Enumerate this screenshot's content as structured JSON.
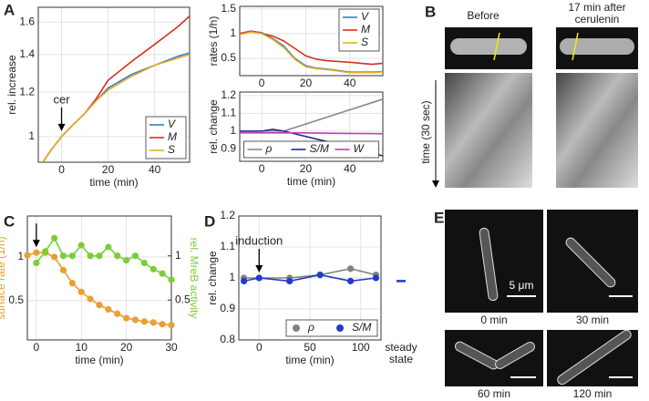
{
  "chart_data": [
    {
      "type": "line",
      "xlabel": "time (min)",
      "ylabel": "rel. increase",
      "ylog": true,
      "xlim": [
        -10,
        55
      ],
      "ylim": [
        0.9,
        1.7
      ],
      "xticks": [
        0,
        20,
        40
      ],
      "yticks": [
        1,
        1.2,
        1.4,
        1.6
      ],
      "grid": true,
      "legend": "lower right",
      "annotation": {
        "text": "cer",
        "x": 0
      },
      "x": [
        -8,
        -5,
        0,
        5,
        10,
        15,
        20,
        30,
        40,
        50,
        55
      ],
      "series": [
        {
          "name": "V",
          "color": "#3a7fc1",
          "values": [
            0.9,
            0.94,
            1.0,
            1.05,
            1.1,
            1.16,
            1.22,
            1.29,
            1.34,
            1.39,
            1.41
          ]
        },
        {
          "name": "M",
          "color": "#d7301f",
          "values": [
            0.9,
            0.94,
            1.0,
            1.05,
            1.1,
            1.17,
            1.26,
            1.36,
            1.46,
            1.57,
            1.64
          ]
        },
        {
          "name": "S",
          "color": "#e8b020",
          "values": [
            0.9,
            0.94,
            1.0,
            1.05,
            1.1,
            1.16,
            1.21,
            1.28,
            1.34,
            1.38,
            1.4
          ]
        }
      ]
    },
    {
      "type": "line",
      "ylabel": "rates (1/h)",
      "xlim": [
        -10,
        55
      ],
      "ylim": [
        0.15,
        1.55
      ],
      "xticks": [
        0,
        20,
        40
      ],
      "yticks": [
        0.5,
        1,
        1.5
      ],
      "grid": true,
      "legend": "upper right",
      "x": [
        -10,
        -5,
        0,
        5,
        10,
        15,
        20,
        25,
        30,
        40,
        50,
        55
      ],
      "series": [
        {
          "name": "V",
          "color": "#3a7fc1",
          "values": [
            1.0,
            1.05,
            1.02,
            0.9,
            0.75,
            0.5,
            0.35,
            0.3,
            0.28,
            0.22,
            0.22,
            0.23
          ]
        },
        {
          "name": "M",
          "color": "#d7301f",
          "values": [
            1.0,
            1.05,
            1.0,
            0.95,
            0.85,
            0.7,
            0.55,
            0.48,
            0.45,
            0.42,
            0.38,
            0.4
          ]
        },
        {
          "name": "S",
          "color": "#e8b020",
          "values": [
            0.98,
            1.03,
            1.0,
            0.88,
            0.72,
            0.48,
            0.33,
            0.29,
            0.27,
            0.21,
            0.21,
            0.22
          ]
        }
      ]
    },
    {
      "type": "line",
      "xlabel": "time (min)",
      "ylabel": "rel. change",
      "xlim": [
        -10,
        55
      ],
      "ylim": [
        0.83,
        1.22
      ],
      "xticks": [
        0,
        20,
        40
      ],
      "yticks": [
        0.9,
        1,
        1.1,
        1.2
      ],
      "grid": true,
      "legend": "lower center",
      "legend_columns": 3,
      "x": [
        -10,
        0,
        5,
        10,
        20,
        30,
        40,
        50,
        55
      ],
      "series": [
        {
          "name": "ρ",
          "color": "#888888",
          "values": [
            1.0,
            1.0,
            1.0,
            1.0,
            1.04,
            1.08,
            1.12,
            1.16,
            1.18
          ]
        },
        {
          "name": "S/M",
          "color": "#1f2a8c",
          "values": [
            1.0,
            1.0,
            1.01,
            1.0,
            0.97,
            0.94,
            0.91,
            0.88,
            0.86
          ]
        },
        {
          "name": "W",
          "color": "#c03cc0",
          "values": [
            0.99,
            0.99,
            0.99,
            0.99,
            0.99,
            0.988,
            0.987,
            0.986,
            0.985
          ]
        }
      ]
    },
    {
      "type": "line",
      "xlabel": "time (min)",
      "ylabel": "surface rate (1/h)",
      "y2label": "rel. MreB activity",
      "xlim": [
        -2,
        30
      ],
      "ylim": [
        0.05,
        1.47
      ],
      "y2lim": [
        0.05,
        1.45
      ],
      "xticks": [
        0,
        10,
        20,
        30
      ],
      "yticks": [
        0.5,
        1
      ],
      "y2ticks": [
        0.5,
        1
      ],
      "grid": true,
      "markers": true,
      "annotation": {
        "x": 0
      },
      "x": [
        -2,
        0,
        2,
        4,
        6,
        8,
        10,
        12,
        14,
        16,
        18,
        20,
        22,
        24,
        26,
        28,
        30
      ],
      "series": [
        {
          "name": "surface rate",
          "color": "#e8a030",
          "values": [
            1.02,
            1.05,
            1.05,
            1.0,
            0.85,
            0.7,
            0.6,
            0.52,
            0.45,
            0.4,
            0.35,
            0.3,
            0.28,
            0.26,
            0.25,
            0.23,
            0.22
          ]
        },
        {
          "name": "rel. MreB activity",
          "color": "#7ccd3a",
          "axis": "y2",
          "values": [
            null,
            0.92,
            1.05,
            1.2,
            1.0,
            1.0,
            1.12,
            1.0,
            1.0,
            1.1,
            1.0,
            0.95,
            1.0,
            0.92,
            0.85,
            0.8,
            0.73
          ]
        }
      ]
    },
    {
      "type": "line",
      "xlabel": "time (min)",
      "ylabel": "rel. change",
      "xlim": [
        -20,
        120
      ],
      "ylim": [
        0.8,
        1.2
      ],
      "xticks": [
        0,
        50,
        100
      ],
      "yticks": [
        0.8,
        0.9,
        1,
        1.1,
        1.2
      ],
      "grid": true,
      "markers": true,
      "legend": "lower right",
      "legend_columns": 2,
      "annotation": {
        "text": "induction",
        "x": 0
      },
      "steady_state_label": [
        "steady",
        "state"
      ],
      "steady_state_value": 0.99,
      "x": [
        -15,
        0,
        30,
        60,
        90,
        115
      ],
      "series": [
        {
          "name": "ρ",
          "color": "#808080",
          "values": [
            1.0,
            1.0,
            1.0,
            1.01,
            1.03,
            1.01
          ]
        },
        {
          "name": "S/M",
          "color": "#1f3ccc",
          "values": [
            0.99,
            1.0,
            0.99,
            1.01,
            0.99,
            1.0
          ]
        }
      ]
    }
  ],
  "panel_labels": [
    "A",
    "B",
    "C",
    "D",
    "E"
  ],
  "panel_B": {
    "before": "Before",
    "after": [
      "17 min after",
      "cerulenin"
    ],
    "time_axis": "time (30 sec)"
  },
  "panel_E": {
    "scale_bar": "5 μm",
    "times": [
      "0 min",
      "30 min",
      "60 min",
      "120 min"
    ]
  }
}
